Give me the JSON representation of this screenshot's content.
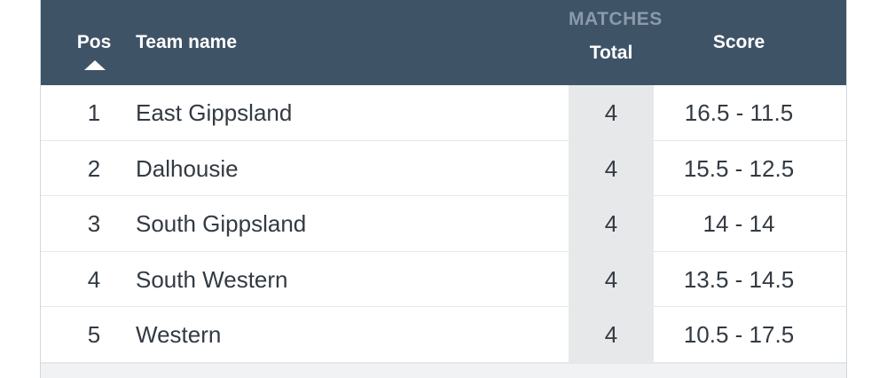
{
  "header": {
    "pos_label": "Pos",
    "team_label": "Team name",
    "matches_group_label": "MATCHES",
    "total_label": "Total",
    "score_label": "Score"
  },
  "rows": [
    {
      "pos": "1",
      "team": "East Gippsland",
      "total": "4",
      "score": "16.5 - 11.5"
    },
    {
      "pos": "2",
      "team": "Dalhousie",
      "total": "4",
      "score": "15.5 - 12.5"
    },
    {
      "pos": "3",
      "team": "South Gippsland",
      "total": "4",
      "score": "14 - 14"
    },
    {
      "pos": "4",
      "team": "South Western",
      "total": "4",
      "score": "13.5 - 14.5"
    },
    {
      "pos": "5",
      "team": "Western",
      "total": "4",
      "score": "10.5 - 17.5"
    }
  ],
  "colors": {
    "header_bg": "#3f5367",
    "header_group_text": "#8a9aab",
    "total_column_bg": "#e7e8ea",
    "row_text": "#333a42"
  },
  "icons": {
    "sort": "sort-ascending-triangle"
  }
}
